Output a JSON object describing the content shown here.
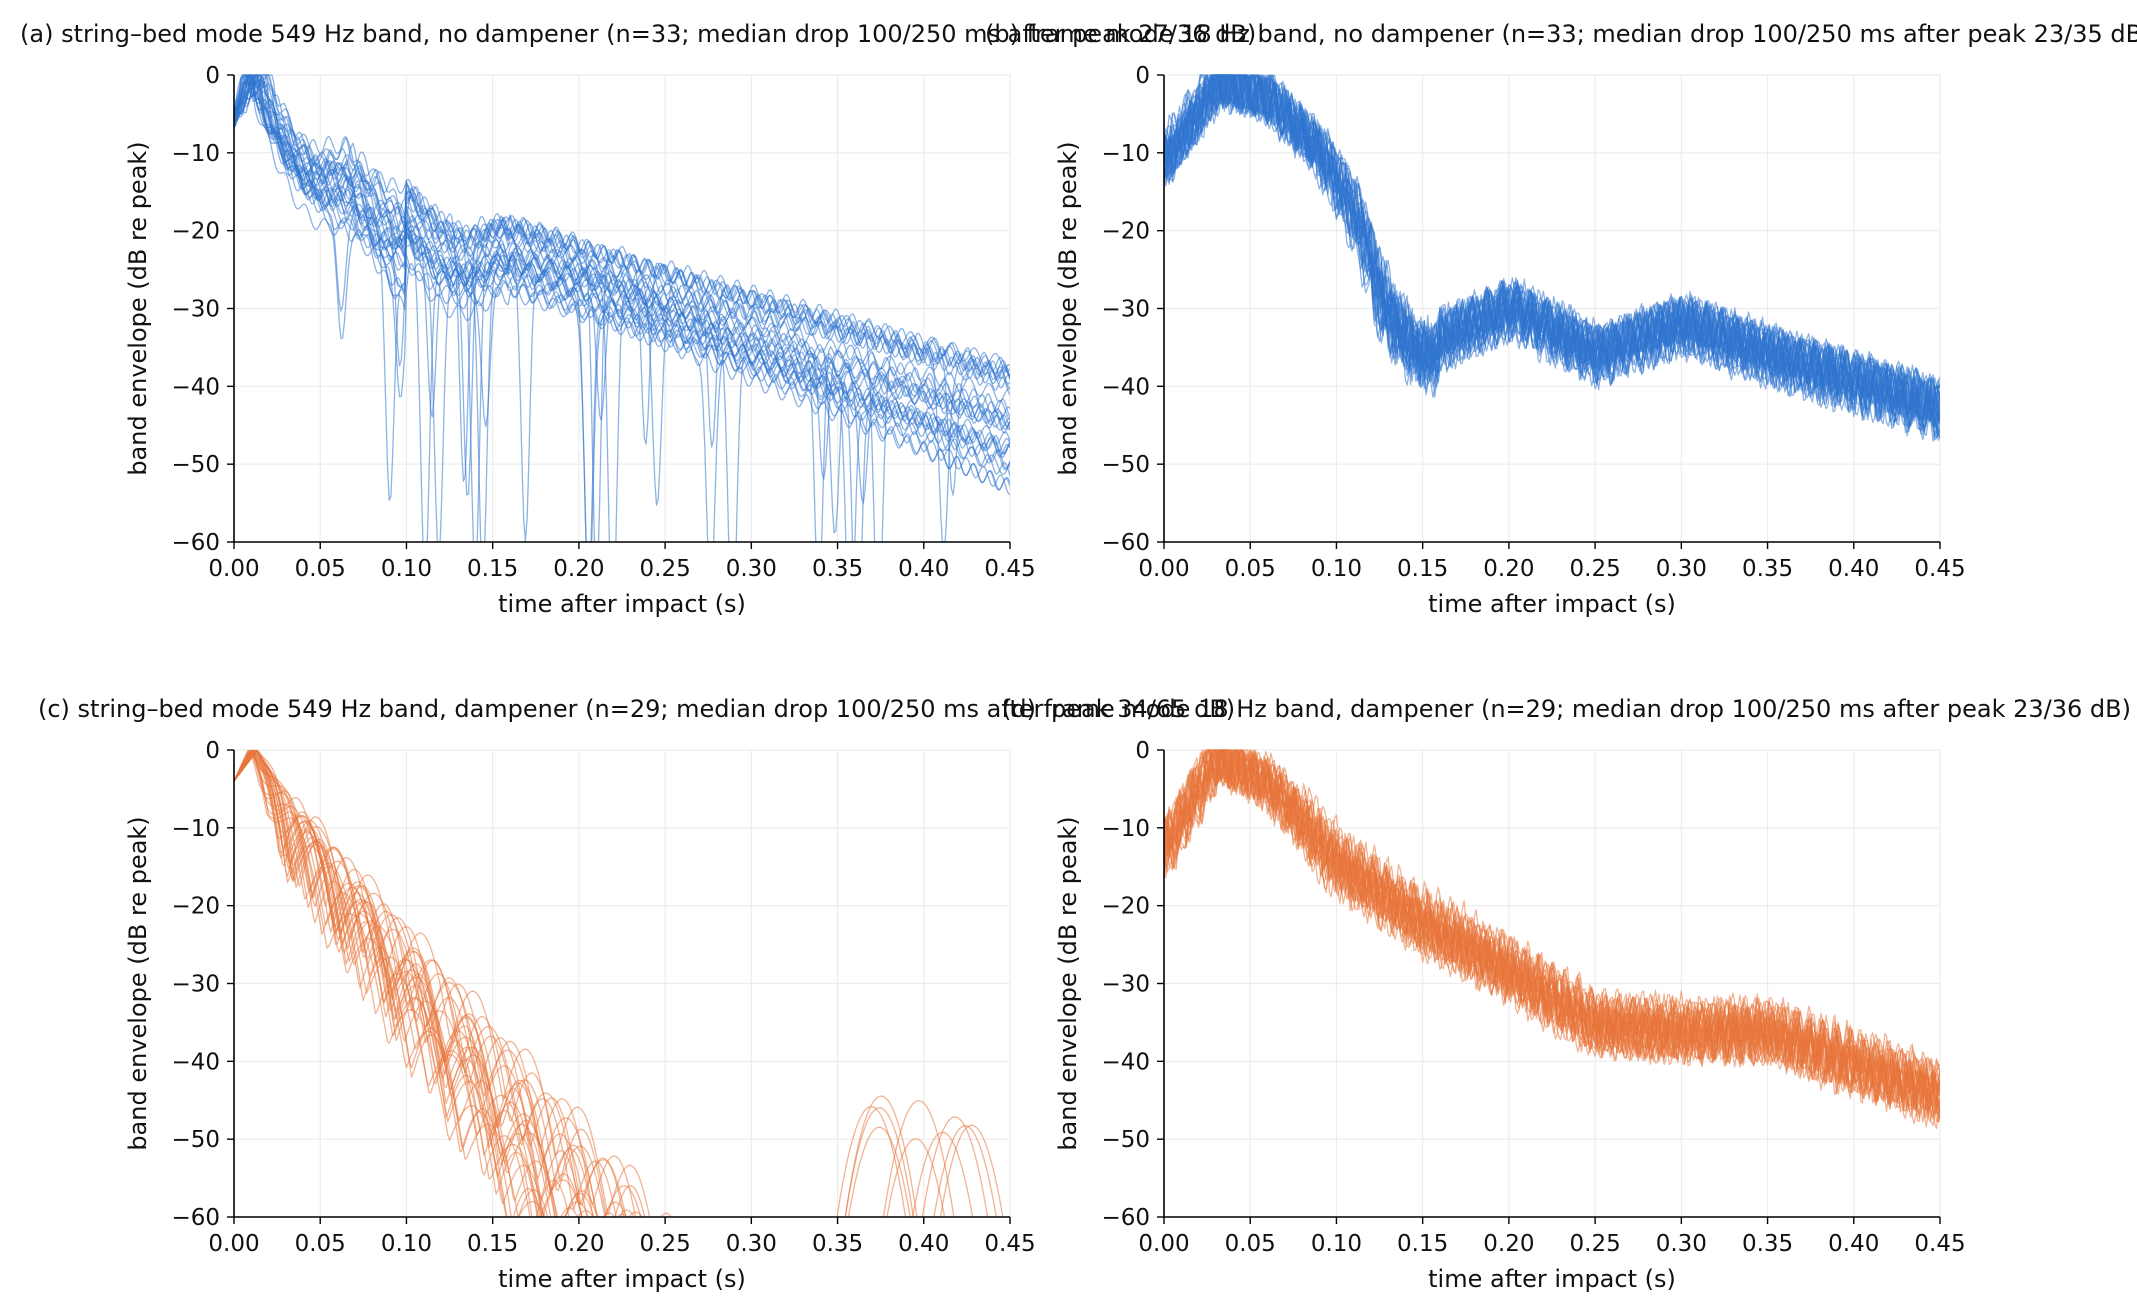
{
  "colors": {
    "no_dampener": "#2f74d0",
    "dampener": "#e8743b",
    "grid": "#ececec",
    "axis": "#000000"
  },
  "chart_data": [
    {
      "id": "a",
      "type": "line",
      "title": "(a) string–bed mode 549 Hz band, no dampener (n=33; median drop 100/250 ms after peak 27/36 dB)",
      "xlabel": "time after impact (s)",
      "ylabel": "band envelope (dB re peak)",
      "xlim": [
        0,
        0.45
      ],
      "ylim": [
        -60,
        0
      ],
      "xticks": [
        0,
        0.05,
        0.1,
        0.15,
        0.2,
        0.25,
        0.3,
        0.35,
        0.4,
        0.45
      ],
      "xtick_labels": [
        "0.00",
        "0.05",
        "0.10",
        "0.15",
        "0.20",
        "0.25",
        "0.30",
        "0.35",
        "0.40",
        "0.45"
      ],
      "yticks": [
        0,
        -10,
        -20,
        -30,
        -40,
        -50,
        -60
      ],
      "ytick_labels": [
        "0",
        "−10",
        "−20",
        "−30",
        "−40",
        "−50",
        "−60"
      ],
      "grid": true,
      "n_traces": 33,
      "color": "#2f74d0",
      "median_drop_db": {
        "t100ms": 27,
        "t250ms": 36
      },
      "envelope_profile": {
        "peak_time_s": [
          0.005,
          0.02
        ],
        "level_at_0_1s_db": [
          -25,
          -13
        ],
        "level_at_0_45s_db": [
          -56,
          -37
        ],
        "notch_depth_db": [
          -60,
          -45
        ]
      }
    },
    {
      "id": "b",
      "type": "line",
      "title": "(b) frame mode 18 Hz band, no dampener (n=33; median drop 100/250 ms after peak 23/35 dB)",
      "xlabel": "time after impact (s)",
      "ylabel": "band envelope (dB re peak)",
      "xlim": [
        0,
        0.45
      ],
      "ylim": [
        -60,
        0
      ],
      "xticks": [
        0,
        0.05,
        0.1,
        0.15,
        0.2,
        0.25,
        0.3,
        0.35,
        0.4,
        0.45
      ],
      "xtick_labels": [
        "0.00",
        "0.05",
        "0.10",
        "0.15",
        "0.20",
        "0.25",
        "0.30",
        "0.35",
        "0.40",
        "0.45"
      ],
      "yticks": [
        0,
        -10,
        -20,
        -30,
        -40,
        -50,
        -60
      ],
      "ytick_labels": [
        "0",
        "−10",
        "−20",
        "−30",
        "−40",
        "−50",
        "−60"
      ],
      "grid": true,
      "n_traces": 33,
      "color": "#2f74d0",
      "median_drop_db": {
        "t100ms": 23,
        "t250ms": 35
      },
      "envelope_profile": {
        "start_db": -10,
        "peak_time_s": 0.03,
        "shoulder": [
          [
            0.1,
            -14
          ],
          [
            0.13,
            -33
          ],
          [
            0.15,
            -36
          ],
          [
            0.2,
            -30
          ],
          [
            0.25,
            -36
          ],
          [
            0.3,
            -32
          ],
          [
            0.35,
            -36
          ],
          [
            0.45,
            -43
          ]
        ],
        "ripple_db": 3
      }
    },
    {
      "id": "c",
      "type": "line",
      "title": "(c) string–bed mode 549 Hz band, dampener (n=29; median drop 100/250 ms after peak 34/65 dB)",
      "xlabel": "time after impact (s)",
      "ylabel": "band envelope (dB re peak)",
      "xlim": [
        0,
        0.45
      ],
      "ylim": [
        -60,
        0
      ],
      "xticks": [
        0,
        0.05,
        0.1,
        0.15,
        0.2,
        0.25,
        0.3,
        0.35,
        0.4,
        0.45
      ],
      "xtick_labels": [
        "0.00",
        "0.05",
        "0.10",
        "0.15",
        "0.20",
        "0.25",
        "0.30",
        "0.35",
        "0.40",
        "0.45"
      ],
      "yticks": [
        0,
        -10,
        -20,
        -30,
        -40,
        -50,
        -60
      ],
      "ytick_labels": [
        "0",
        "−10",
        "−20",
        "−30",
        "−40",
        "−50",
        "−60"
      ],
      "grid": true,
      "n_traces": 29,
      "color": "#e8743b",
      "median_drop_db": {
        "t100ms": 34,
        "t250ms": 65
      },
      "envelope_profile": {
        "peak_time_s": 0.01,
        "level_at_0_1s_db": -28,
        "reaches_floor_s": 0.25,
        "late_bumps": [
          [
            0.37,
            -46
          ],
          [
            0.41,
            -44
          ],
          [
            0.45,
            -47
          ]
        ]
      }
    },
    {
      "id": "d",
      "type": "line",
      "title": "(d) frame mode 18 Hz band, dampener (n=29; median drop 100/250 ms after peak 23/36 dB)",
      "xlabel": "time after impact (s)",
      "ylabel": "band envelope (dB re peak)",
      "xlim": [
        0,
        0.45
      ],
      "ylim": [
        -60,
        0
      ],
      "xticks": [
        0,
        0.05,
        0.1,
        0.15,
        0.2,
        0.25,
        0.3,
        0.35,
        0.4,
        0.45
      ],
      "xtick_labels": [
        "0.00",
        "0.05",
        "0.10",
        "0.15",
        "0.20",
        "0.25",
        "0.30",
        "0.35",
        "0.40",
        "0.45"
      ],
      "yticks": [
        0,
        -10,
        -20,
        -30,
        -40,
        -50,
        -60
      ],
      "ytick_labels": [
        "0",
        "−10",
        "−20",
        "−30",
        "−40",
        "−50",
        "−60"
      ],
      "grid": true,
      "n_traces": 29,
      "color": "#e8743b",
      "median_drop_db": {
        "t100ms": 23,
        "t250ms": 36
      },
      "envelope_profile": {
        "start_db": -12,
        "peak_time_s": 0.03,
        "shoulder": [
          [
            0.1,
            -15
          ],
          [
            0.15,
            -22
          ],
          [
            0.2,
            -28
          ],
          [
            0.25,
            -35
          ],
          [
            0.3,
            -36
          ],
          [
            0.35,
            -36
          ],
          [
            0.4,
            -40
          ],
          [
            0.45,
            -44
          ]
        ],
        "ripple_db": 3
      }
    }
  ]
}
